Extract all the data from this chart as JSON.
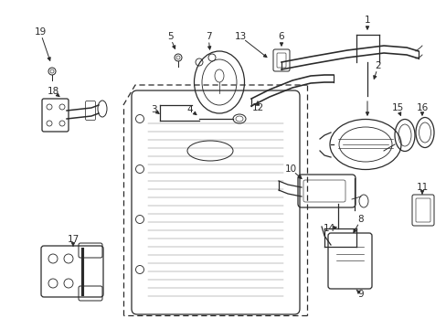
{
  "background_color": "#ffffff",
  "line_color": "#2a2a2a",
  "figsize": [
    4.89,
    3.6
  ],
  "dpi": 100
}
